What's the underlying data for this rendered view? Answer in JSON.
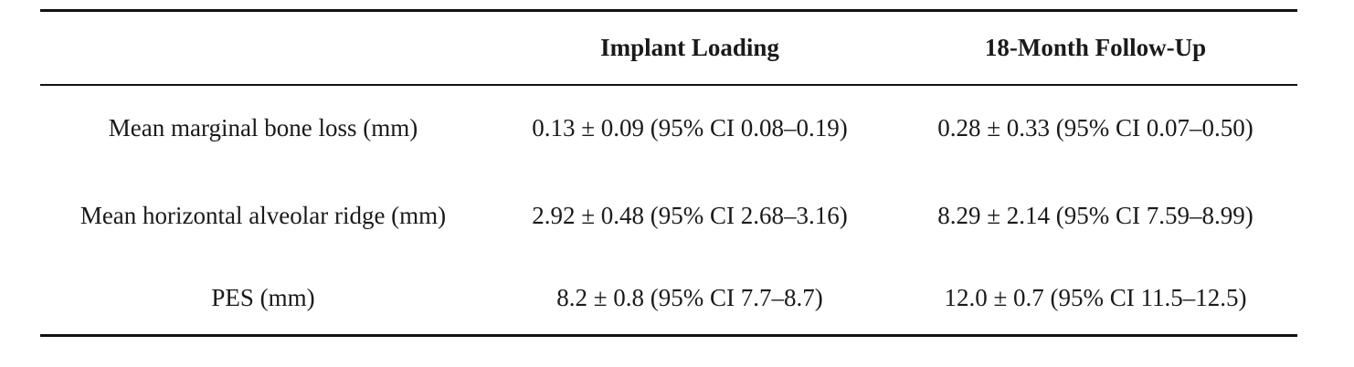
{
  "table": {
    "headers": [
      "",
      "Implant Loading",
      "18-Month Follow-Up"
    ],
    "rows": [
      {
        "label": "Mean marginal bone loss (mm)",
        "loading": "0.13 ± 0.09 (95% CI 0.08–0.19)",
        "followup": "0.28 ± 0.33 (95% CI 0.07–0.50)"
      },
      {
        "label": "Mean horizontal alveolar ridge (mm)",
        "loading": "2.92 ± 0.48 (95% CI 2.68–3.16)",
        "followup": "8.29 ± 2.14 (95% CI 7.59–8.99)"
      },
      {
        "label": "PES (mm)",
        "loading": "8.2 ± 0.8 (95% CI 7.7–8.7)",
        "followup": "12.0 ± 0.7 (95% CI 11.5–12.5)"
      }
    ]
  }
}
